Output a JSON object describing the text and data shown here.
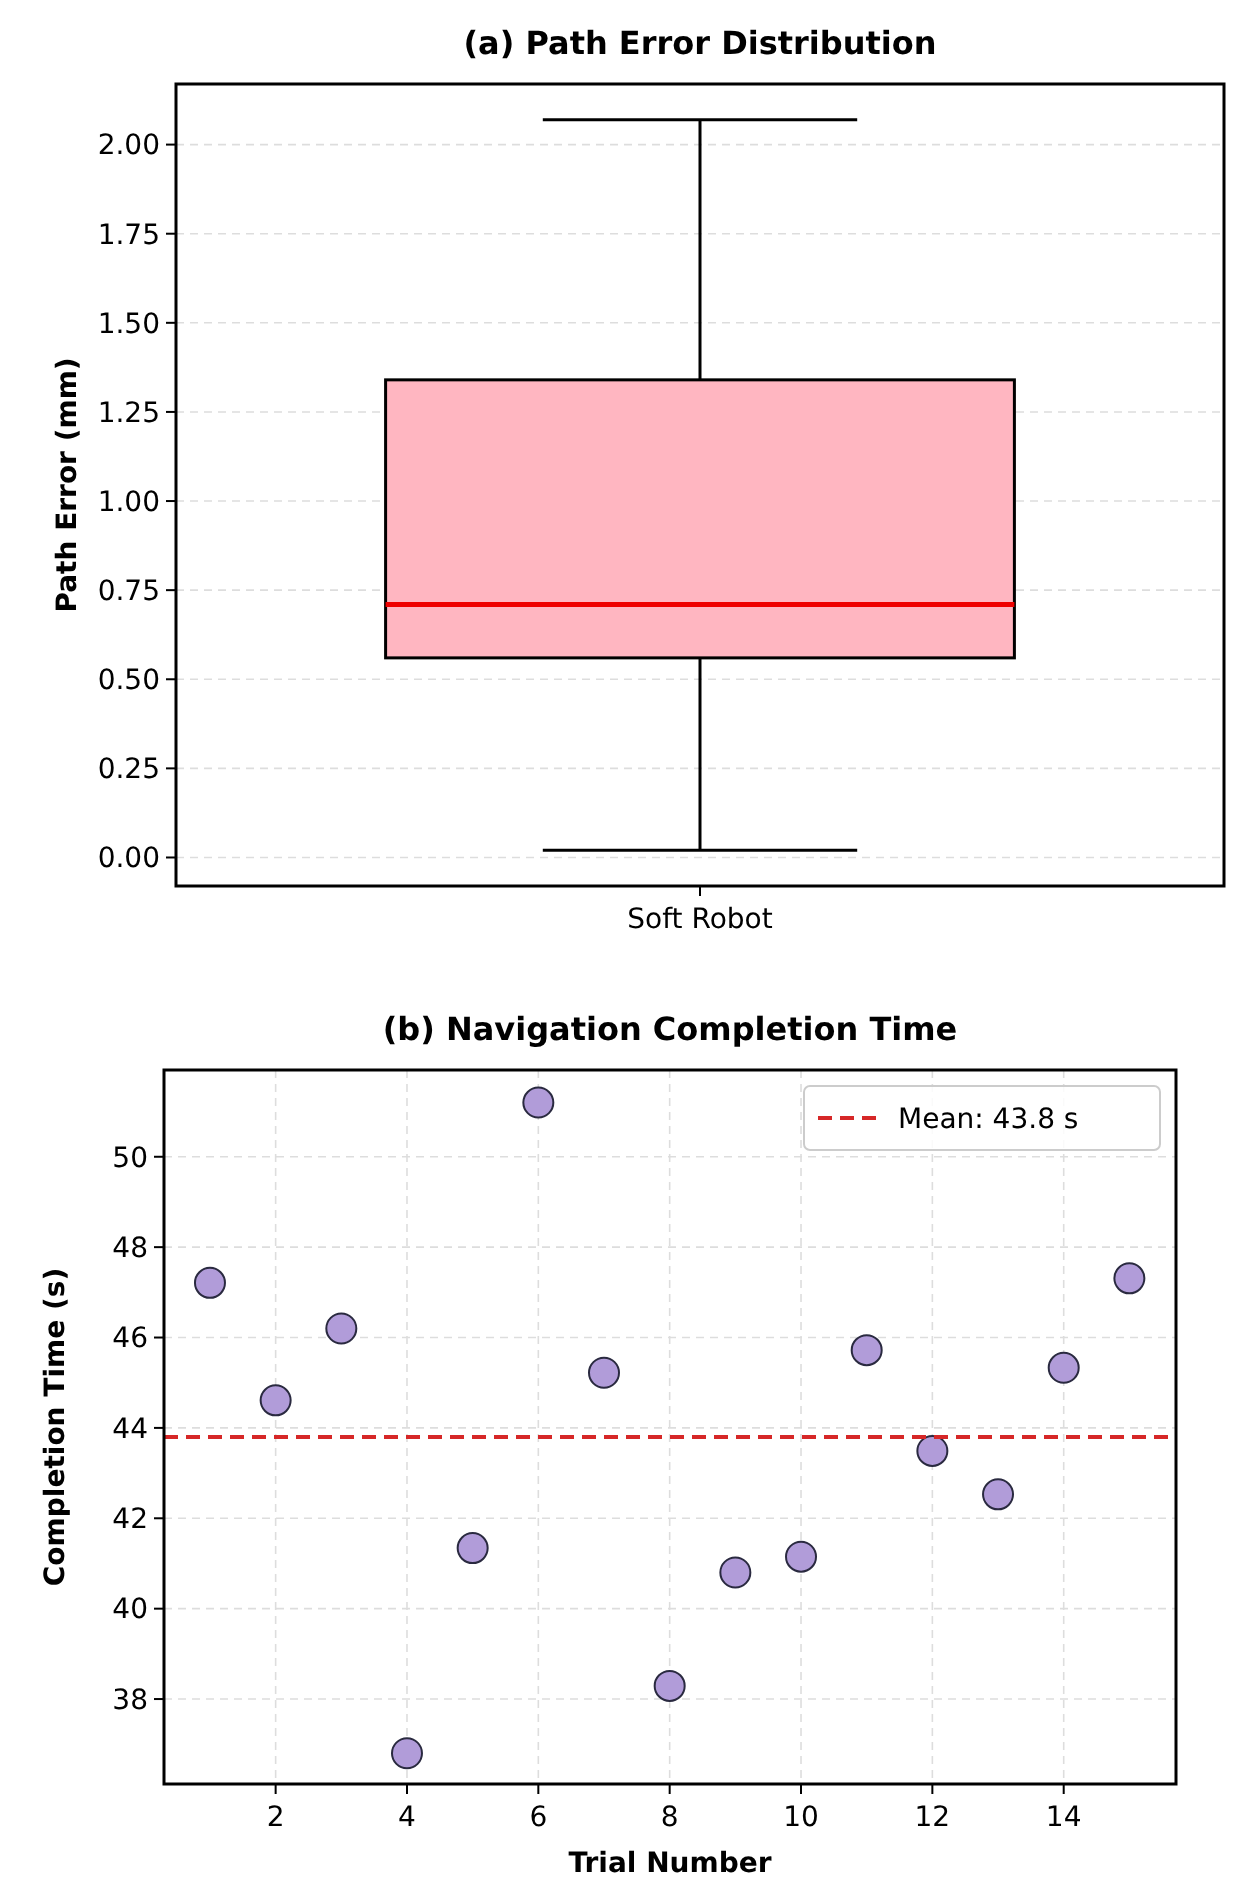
{
  "chart_data": [
    {
      "type": "box",
      "title": "(a) Path Error Distribution",
      "ylabel": "Path Error (mm)",
      "categories": [
        "Soft Robot"
      ],
      "ylim": [
        -0.08,
        2.17
      ],
      "yticks": [
        {
          "value": 0,
          "label": "0.00"
        },
        {
          "value": 0.25,
          "label": "0.25"
        },
        {
          "value": 0.5,
          "label": "0.50"
        },
        {
          "value": 0.75,
          "label": "0.75"
        },
        {
          "value": 1,
          "label": "1.00"
        },
        {
          "value": 1.25,
          "label": "1.25"
        },
        {
          "value": 1.5,
          "label": "1.50"
        },
        {
          "value": 1.75,
          "label": "1.75"
        },
        {
          "value": 2,
          "label": "2.00"
        }
      ],
      "grid": "y",
      "series": [
        {
          "color": "#ffb6c1",
          "boxes": [
            {
              "low": 0.02,
              "q1": 0.56,
              "median": 0.71,
              "q3": 1.34,
              "high": 2.07
            }
          ]
        }
      ]
    },
    {
      "type": "scatter",
      "title": "(b) Navigation Completion Time",
      "xlabel": "Trial Number",
      "ylabel": "Completion Time (s)",
      "x": [
        1,
        2,
        3,
        4,
        5,
        6,
        7,
        8,
        9,
        10,
        11,
        12,
        13,
        14,
        15
      ],
      "xlim": [
        0.3,
        15.71
      ],
      "xticks": [
        2,
        4,
        6,
        8,
        10,
        12,
        14
      ],
      "ylim": [
        36.12,
        51.92
      ],
      "yticks": [
        38,
        40,
        42,
        44,
        46,
        48,
        50
      ],
      "grid": true,
      "marker": "circle",
      "legend": "top right",
      "series": [
        {
          "color": "#b19cd9",
          "values": [
            47.21,
            44.61,
            46.2,
            36.8,
            41.34,
            51.2,
            45.22,
            38.29,
            40.8,
            41.15,
            45.72,
            43.49,
            42.53,
            45.33,
            47.31
          ]
        }
      ],
      "ref_lines": [
        {
          "axis": "y",
          "value": 43.8,
          "label": "Mean: 43.8 s",
          "color": "#d62728",
          "line_style": "dashed"
        }
      ]
    }
  ]
}
